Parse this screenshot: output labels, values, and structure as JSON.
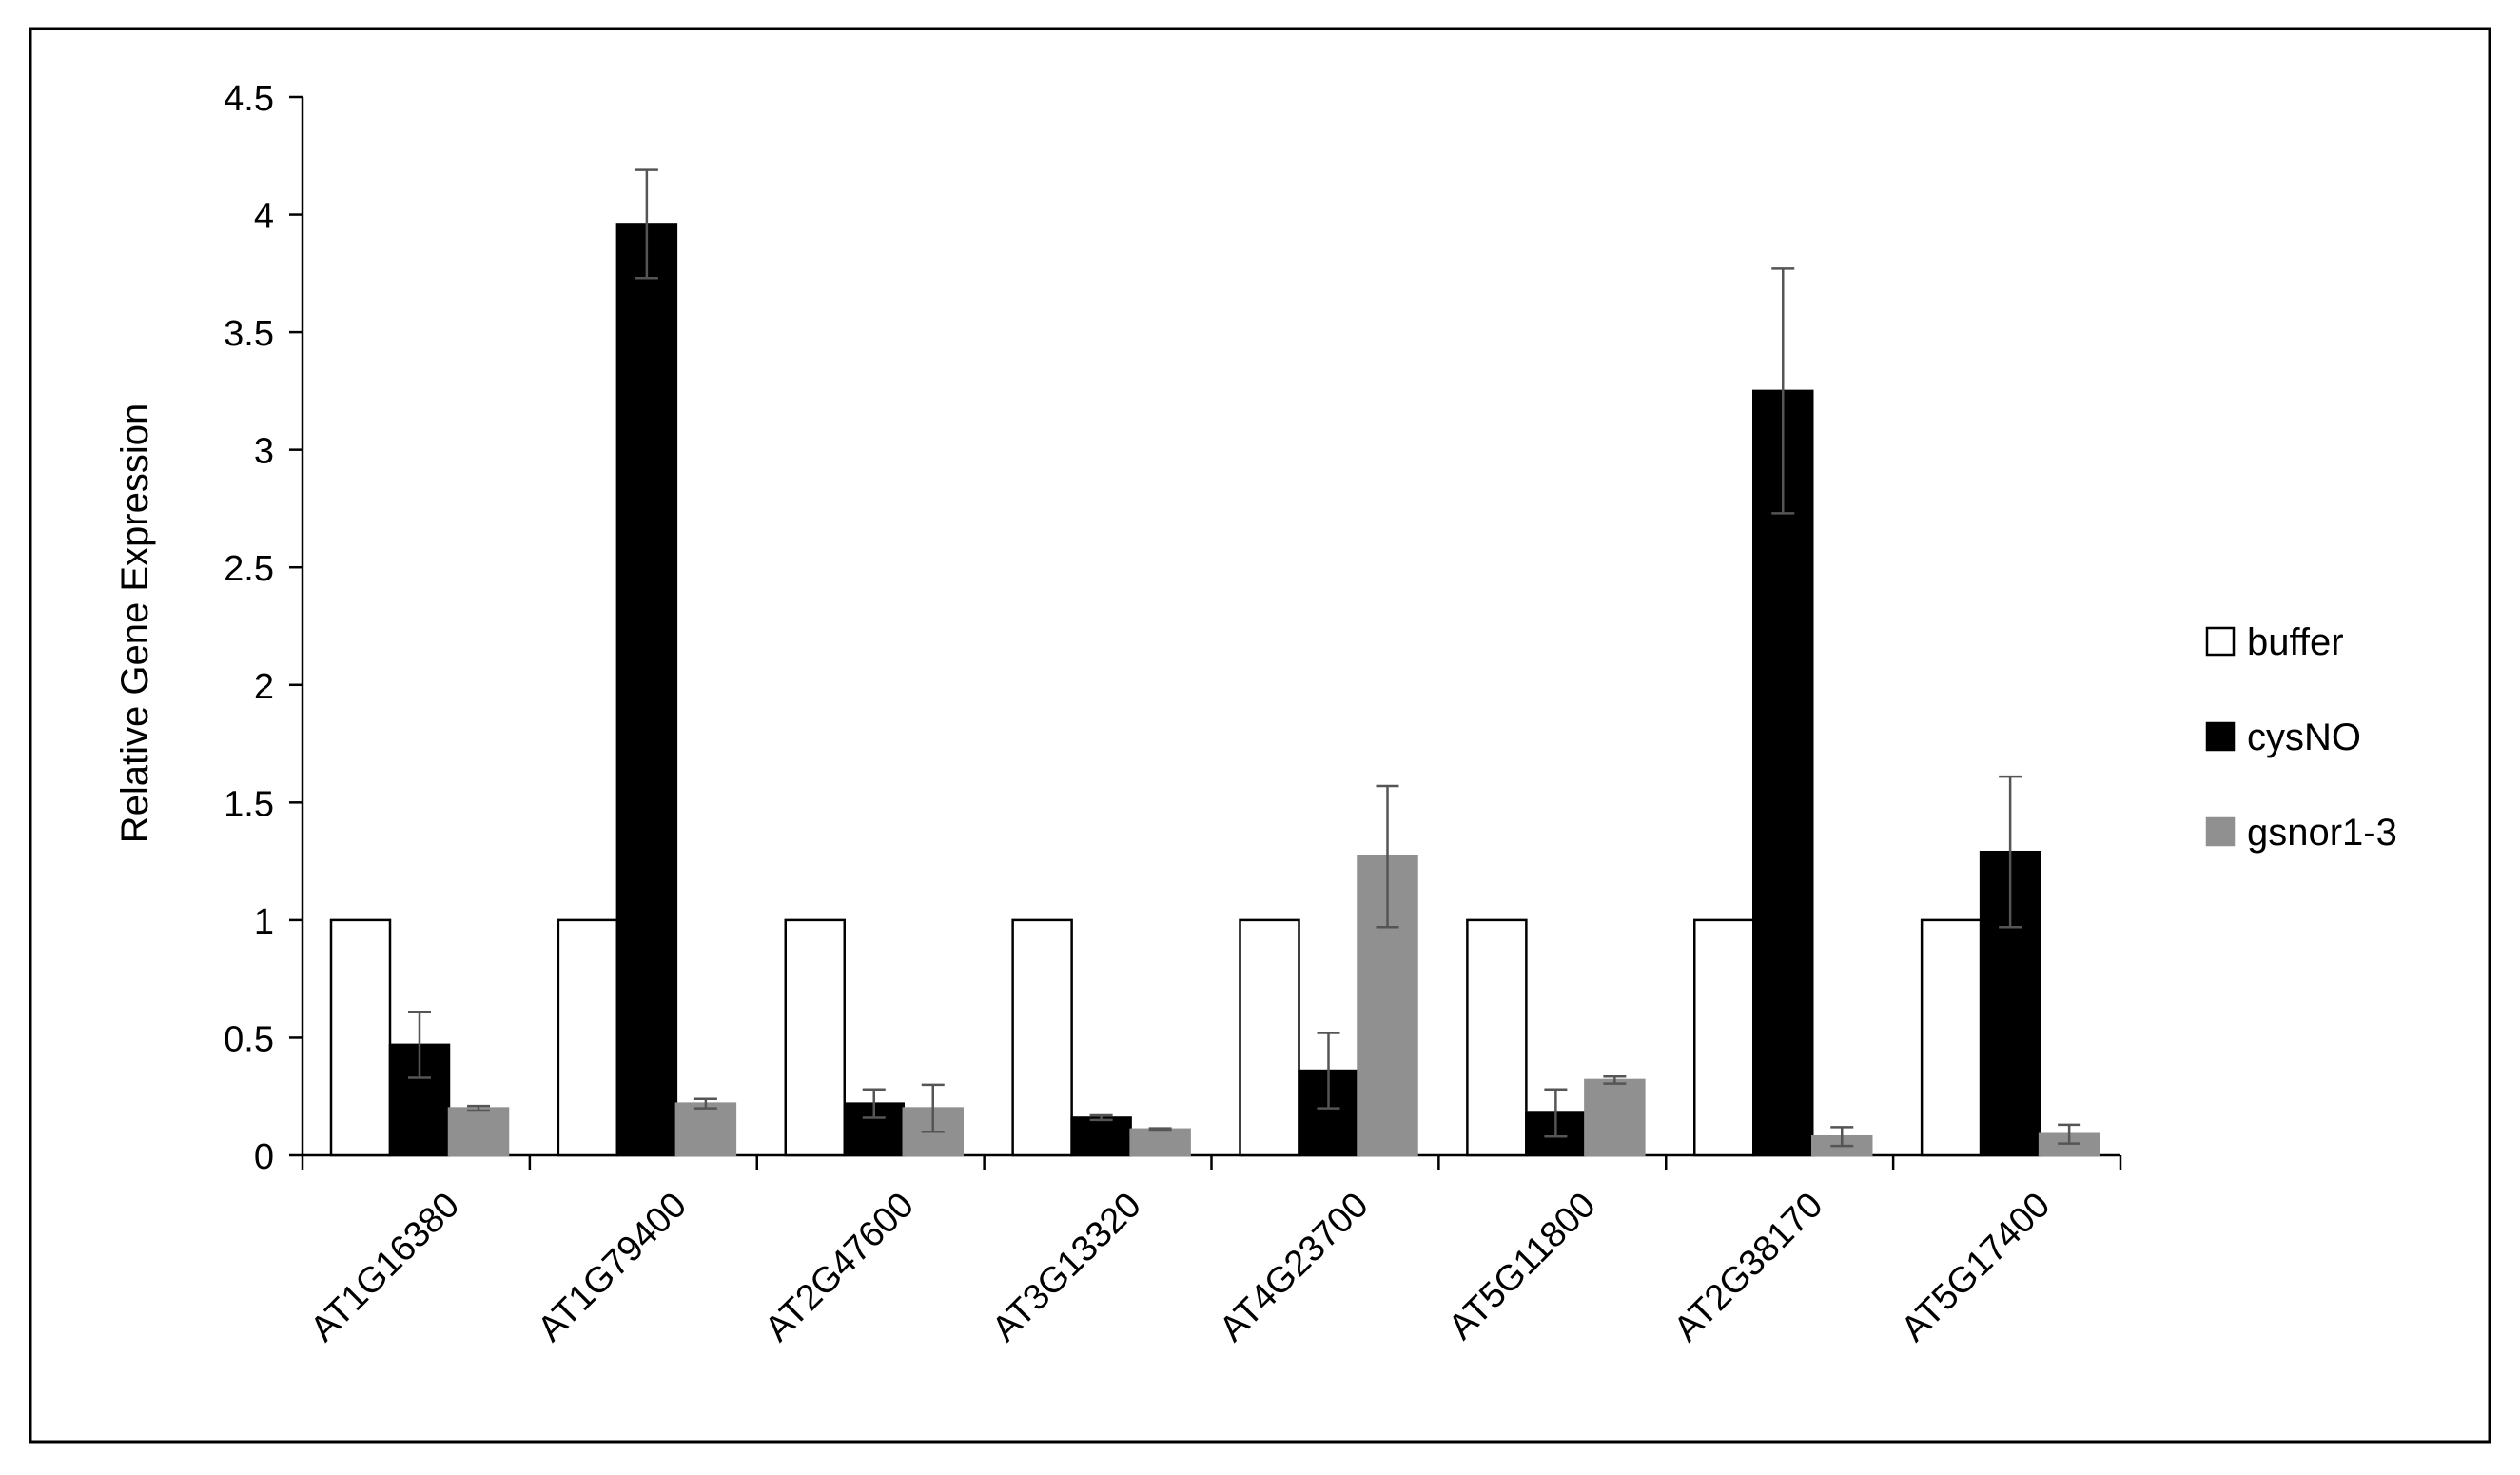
{
  "chart_data": {
    "type": "bar",
    "title": "",
    "xlabel": "",
    "ylabel": "Relative Gene Expression",
    "ylim": [
      0,
      4.5
    ],
    "yticks": [
      0,
      0.5,
      1,
      1.5,
      2,
      2.5,
      3,
      3.5,
      4,
      4.5
    ],
    "ytick_labels": [
      "0",
      "0.5",
      "1",
      "1.5",
      "2",
      "2.5",
      "3",
      "3.5",
      "4",
      "4.5"
    ],
    "grid": false,
    "legend_position": "right",
    "categories": [
      "AT1G16380",
      "AT1G79400",
      "AT2G47600",
      "AT3G13320",
      "AT4G23700",
      "AT5G11800",
      "AT2G38170",
      "AT5G17400"
    ],
    "series": [
      {
        "name": "buffer",
        "fill": "#ffffff",
        "stroke": "#000000",
        "values": [
          1,
          1,
          1,
          1,
          1,
          1,
          1,
          1
        ],
        "errors": [
          0,
          0,
          0,
          0,
          0,
          0,
          0,
          0
        ]
      },
      {
        "name": "cysNO",
        "fill": "#000000",
        "stroke": "#000000",
        "values": [
          0.47,
          3.96,
          0.22,
          0.16,
          0.36,
          0.18,
          3.25,
          1.29
        ],
        "errors": [
          0.14,
          0.23,
          0.06,
          0.01,
          0.16,
          0.1,
          0.52,
          0.32
        ]
      },
      {
        "name": "gsnor1-3",
        "fill": "#909090",
        "stroke": "#909090",
        "values": [
          0.2,
          0.22,
          0.2,
          0.11,
          1.27,
          0.32,
          0.08,
          0.09
        ],
        "errors": [
          0.01,
          0.02,
          0.1,
          0.005,
          0.3,
          0.015,
          0.04,
          0.04
        ]
      }
    ]
  }
}
